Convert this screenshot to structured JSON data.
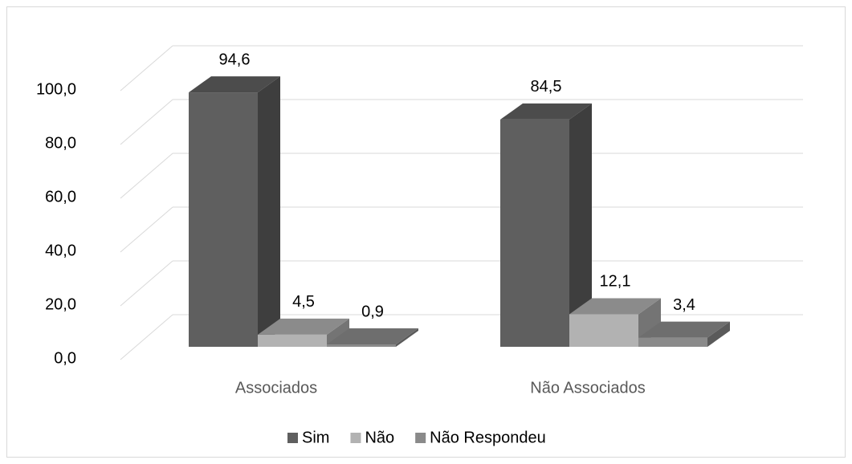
{
  "chart_data": {
    "type": "bar3d",
    "categories": [
      "Associados",
      "Não Associados"
    ],
    "series": [
      {
        "name": "Sim",
        "color": "#5f5f5f",
        "values": [
          94.6,
          84.5
        ],
        "value_labels": [
          "94,6",
          "84,5"
        ]
      },
      {
        "name": "Não",
        "color": "#b2b2b2",
        "values": [
          4.5,
          12.1
        ],
        "value_labels": [
          "4,5",
          "12,1"
        ]
      },
      {
        "name": "Não Respondeu",
        "color": "#8a8a8a",
        "values": [
          0.9,
          3.4
        ],
        "value_labels": [
          "0,9",
          "3,4"
        ]
      }
    ],
    "ylim": [
      0,
      100
    ],
    "yticks": [
      {
        "value": 0,
        "label": "0,0"
      },
      {
        "value": 20,
        "label": "20,0"
      },
      {
        "value": 40,
        "label": "40,0"
      },
      {
        "value": 60,
        "label": "60,0"
      },
      {
        "value": 80,
        "label": "80,0"
      },
      {
        "value": 100,
        "label": "100,0"
      }
    ],
    "grid": true,
    "legend": "bottom"
  }
}
